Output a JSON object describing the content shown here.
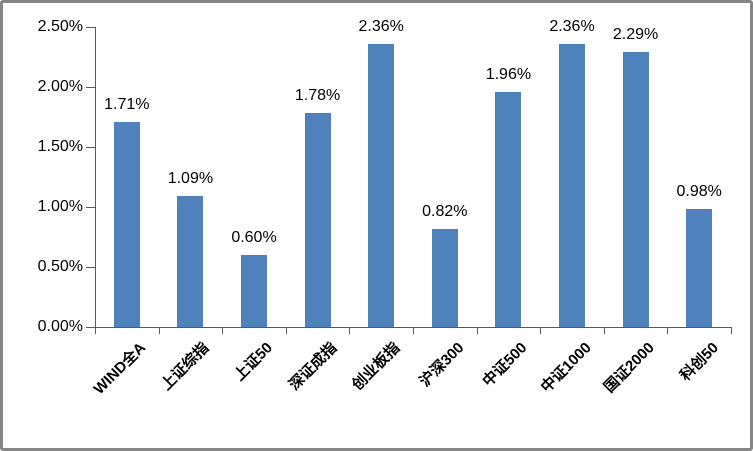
{
  "chart_data": {
    "type": "bar",
    "title": "",
    "xlabel": "",
    "ylabel": "",
    "categories": [
      "WIND全A",
      "上证综指",
      "上证50",
      "深证成指",
      "创业板指",
      "沪深300",
      "中证500",
      "中证1000",
      "国证2000",
      "科创50"
    ],
    "values": [
      1.71,
      1.09,
      0.6,
      1.78,
      2.36,
      0.82,
      1.96,
      2.36,
      2.29,
      0.98
    ],
    "data_labels": [
      "1.71%",
      "1.09%",
      "0.60%",
      "1.78%",
      "2.36%",
      "0.82%",
      "1.96%",
      "2.36%",
      "2.29%",
      "0.98%"
    ],
    "ylim": [
      0,
      2.5
    ],
    "ytick_interval": 0.5,
    "ytick_labels": [
      "0.00%",
      "0.50%",
      "1.00%",
      "1.50%",
      "2.00%",
      "2.50%"
    ],
    "grid": false,
    "legend_position": "none",
    "bar_color": "#4F81BD",
    "axis_color": "#595959",
    "label_color": "#000000",
    "frame_border_color": "#858585",
    "background_color": "#FFFFFF"
  }
}
